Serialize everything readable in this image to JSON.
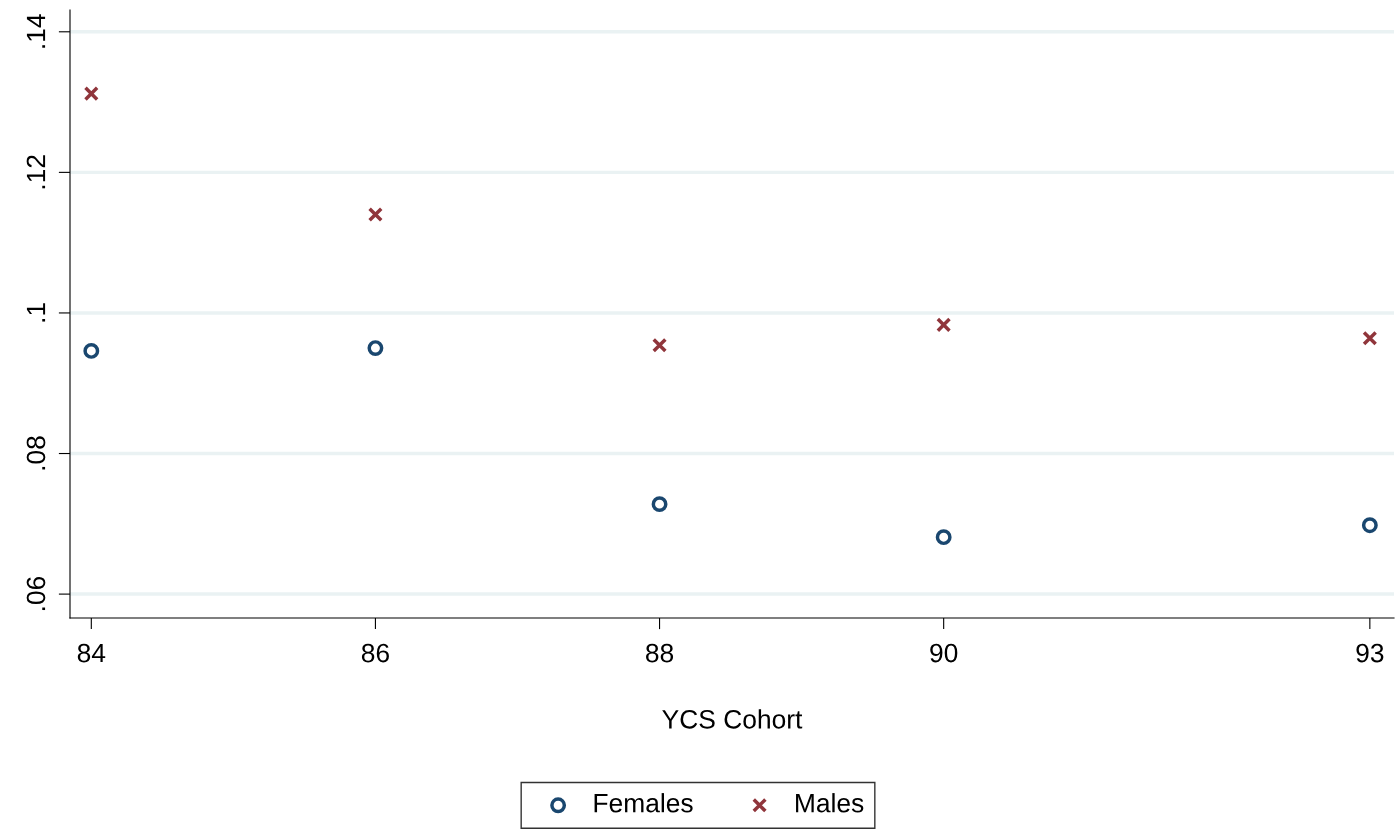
{
  "chart_data": {
    "type": "scatter",
    "xlabel": "YCS Cohort",
    "x": [
      84,
      86,
      88,
      90,
      93
    ],
    "series": [
      {
        "name": "Females",
        "color": "#1a476f",
        "marker": "circle",
        "values": [
          0.0946,
          0.095,
          0.0728,
          0.0681,
          0.0698
        ]
      },
      {
        "name": "Males",
        "color": "#90353b",
        "marker": "cross",
        "values": [
          0.1312,
          0.114,
          0.0954,
          0.0983,
          0.0964
        ]
      }
    ],
    "xlim": [
      83.85,
      93.17
    ],
    "xticks": [
      84,
      86,
      88,
      90,
      93
    ],
    "ylim": [
      0.0566,
      0.1431
    ],
    "yticks": [
      {
        "value": 0.06,
        "label": ".06"
      },
      {
        "value": 0.08,
        "label": ".08"
      },
      {
        "value": 0.1,
        "label": ".1"
      },
      {
        "value": 0.12,
        "label": ".12"
      },
      {
        "value": 0.14,
        "label": ".14"
      }
    ],
    "grid": "y",
    "legend": "bottom"
  }
}
